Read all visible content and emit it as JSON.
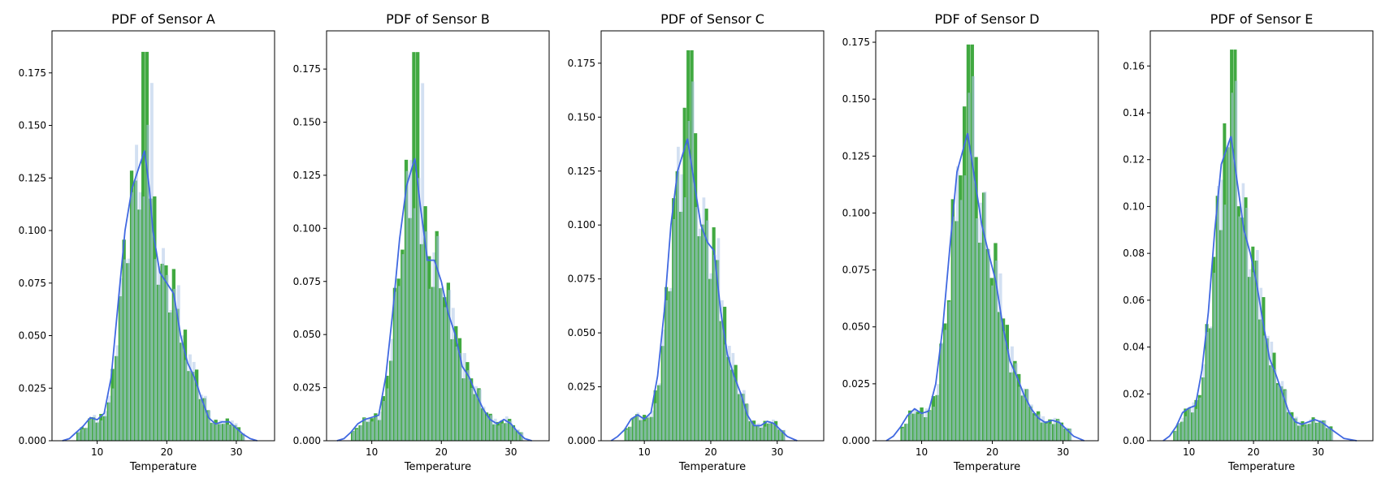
{
  "colors": {
    "hist_green": "#2ca02c",
    "hist_blue": "#aec7e8",
    "kde_line": "#4169e1",
    "axis": "#000000",
    "background": "#ffffff"
  },
  "chart_data": [
    {
      "type": "bar",
      "title": "PDF of Sensor A",
      "xlabel": "Temperature",
      "ylabel": "",
      "xlim": [
        3.5,
        35.5
      ],
      "ylim": [
        0,
        0.195
      ],
      "xticks": [
        10,
        20,
        30
      ],
      "yticks": [
        0.0,
        0.025,
        0.05,
        0.075,
        0.1,
        0.125,
        0.15,
        0.175
      ],
      "ytick_labels": [
        "0.000",
        "0.025",
        "0.050",
        "0.075",
        "0.100",
        "0.125",
        "0.150",
        "0.175"
      ],
      "grid": false,
      "peak": 0.185,
      "peak_x": 16.8,
      "kde": [
        [
          5,
          0.0
        ],
        [
          6,
          0.001
        ],
        [
          7,
          0.004
        ],
        [
          8,
          0.007
        ],
        [
          9,
          0.011
        ],
        [
          10,
          0.01
        ],
        [
          11,
          0.013
        ],
        [
          12,
          0.03
        ],
        [
          13,
          0.065
        ],
        [
          14,
          0.1
        ],
        [
          15,
          0.12
        ],
        [
          16,
          0.13
        ],
        [
          16.8,
          0.138
        ],
        [
          17.5,
          0.12
        ],
        [
          18,
          0.1
        ],
        [
          19,
          0.08
        ],
        [
          20,
          0.075
        ],
        [
          21,
          0.07
        ],
        [
          22,
          0.05
        ],
        [
          23,
          0.037
        ],
        [
          24,
          0.03
        ],
        [
          25,
          0.02
        ],
        [
          26,
          0.011
        ],
        [
          27,
          0.008
        ],
        [
          28,
          0.009
        ],
        [
          29,
          0.009
        ],
        [
          30,
          0.006
        ],
        [
          31,
          0.003
        ],
        [
          32,
          0.001
        ],
        [
          33,
          0.0
        ]
      ]
    },
    {
      "type": "bar",
      "title": "PDF of Sensor B",
      "xlabel": "Temperature",
      "ylabel": "",
      "xlim": [
        3.5,
        35.5
      ],
      "ylim": [
        0,
        0.193
      ],
      "xticks": [
        10,
        20,
        30
      ],
      "yticks": [
        0.0,
        0.025,
        0.05,
        0.075,
        0.1,
        0.125,
        0.15,
        0.175
      ],
      "ytick_labels": [
        "0.000",
        "0.025",
        "0.050",
        "0.075",
        "0.100",
        "0.125",
        "0.150",
        "0.175"
      ],
      "grid": false,
      "peak": 0.183,
      "peak_x": 16.2,
      "kde": [
        [
          5,
          0.0
        ],
        [
          6,
          0.001
        ],
        [
          7,
          0.004
        ],
        [
          8,
          0.008
        ],
        [
          9,
          0.01
        ],
        [
          10,
          0.011
        ],
        [
          11,
          0.012
        ],
        [
          12,
          0.03
        ],
        [
          13,
          0.06
        ],
        [
          14,
          0.095
        ],
        [
          15,
          0.12
        ],
        [
          16.2,
          0.133
        ],
        [
          17,
          0.11
        ],
        [
          18,
          0.085
        ],
        [
          19,
          0.085
        ],
        [
          20,
          0.075
        ],
        [
          21,
          0.06
        ],
        [
          22,
          0.05
        ],
        [
          23,
          0.035
        ],
        [
          24,
          0.03
        ],
        [
          25,
          0.022
        ],
        [
          26,
          0.015
        ],
        [
          27,
          0.01
        ],
        [
          28,
          0.008
        ],
        [
          29,
          0.01
        ],
        [
          30,
          0.008
        ],
        [
          31,
          0.004
        ],
        [
          32,
          0.001
        ],
        [
          33,
          0.0
        ]
      ]
    },
    {
      "type": "bar",
      "title": "PDF of Sensor C",
      "xlabel": "Temperature",
      "ylabel": "",
      "xlim": [
        3.5,
        37
      ],
      "ylim": [
        0,
        0.19
      ],
      "xticks": [
        10,
        20,
        30
      ],
      "yticks": [
        0.0,
        0.025,
        0.05,
        0.075,
        0.1,
        0.125,
        0.15,
        0.175
      ],
      "ytick_labels": [
        "0.000",
        "0.025",
        "0.050",
        "0.075",
        "0.100",
        "0.125",
        "0.150",
        "0.175"
      ],
      "grid": false,
      "peak": 0.181,
      "peak_x": 16.5,
      "kde": [
        [
          5,
          0.0
        ],
        [
          6,
          0.002
        ],
        [
          7,
          0.005
        ],
        [
          8,
          0.01
        ],
        [
          9,
          0.012
        ],
        [
          10,
          0.01
        ],
        [
          11,
          0.013
        ],
        [
          12,
          0.03
        ],
        [
          13,
          0.06
        ],
        [
          14,
          0.1
        ],
        [
          15,
          0.125
        ],
        [
          16.5,
          0.14
        ],
        [
          17.5,
          0.12
        ],
        [
          18.5,
          0.1
        ],
        [
          19.5,
          0.092
        ],
        [
          20.5,
          0.088
        ],
        [
          21.5,
          0.06
        ],
        [
          22.5,
          0.04
        ],
        [
          23.5,
          0.03
        ],
        [
          24.5,
          0.022
        ],
        [
          25.5,
          0.012
        ],
        [
          26.5,
          0.007
        ],
        [
          27.5,
          0.007
        ],
        [
          28.5,
          0.009
        ],
        [
          29.5,
          0.008
        ],
        [
          30.5,
          0.005
        ],
        [
          31.5,
          0.002
        ],
        [
          33,
          0.0
        ]
      ]
    },
    {
      "type": "bar",
      "title": "PDF of Sensor D",
      "xlabel": "Temperature",
      "ylabel": "",
      "xlim": [
        3.5,
        35
      ],
      "ylim": [
        0,
        0.18
      ],
      "xticks": [
        10,
        20,
        30
      ],
      "yticks": [
        0.0,
        0.025,
        0.05,
        0.075,
        0.1,
        0.125,
        0.15,
        0.175
      ],
      "ytick_labels": [
        "0.000",
        "0.025",
        "0.050",
        "0.075",
        "0.100",
        "0.125",
        "0.150",
        "0.175"
      ],
      "grid": false,
      "peak": 0.174,
      "peak_x": 16.5,
      "kde": [
        [
          5,
          0.0
        ],
        [
          6,
          0.002
        ],
        [
          7,
          0.006
        ],
        [
          8,
          0.011
        ],
        [
          9,
          0.014
        ],
        [
          10,
          0.012
        ],
        [
          11,
          0.013
        ],
        [
          12,
          0.025
        ],
        [
          13,
          0.05
        ],
        [
          14,
          0.085
        ],
        [
          15,
          0.118
        ],
        [
          16.5,
          0.135
        ],
        [
          17.5,
          0.115
        ],
        [
          18.5,
          0.095
        ],
        [
          19.5,
          0.082
        ],
        [
          20.5,
          0.07
        ],
        [
          21.5,
          0.05
        ],
        [
          22.5,
          0.035
        ],
        [
          23.5,
          0.028
        ],
        [
          24.5,
          0.02
        ],
        [
          25.5,
          0.014
        ],
        [
          26.5,
          0.01
        ],
        [
          27.5,
          0.008
        ],
        [
          28.5,
          0.009
        ],
        [
          29.5,
          0.008
        ],
        [
          30.5,
          0.005
        ],
        [
          31.5,
          0.002
        ],
        [
          33,
          0.0
        ]
      ]
    },
    {
      "type": "bar",
      "title": "PDF of Sensor E",
      "xlabel": "Temperature",
      "ylabel": "",
      "xlim": [
        4,
        38.5
      ],
      "ylim": [
        0,
        0.175
      ],
      "xticks": [
        10,
        20,
        30
      ],
      "yticks": [
        0.0,
        0.02,
        0.04,
        0.06,
        0.08,
        0.1,
        0.12,
        0.14,
        0.16
      ],
      "ytick_labels": [
        "0.00",
        "0.02",
        "0.04",
        "0.06",
        "0.08",
        "0.10",
        "0.12",
        "0.14",
        "0.16"
      ],
      "grid": false,
      "peak": 0.167,
      "peak_x": 16.5,
      "kde": [
        [
          6,
          0.0
        ],
        [
          7,
          0.002
        ],
        [
          8,
          0.006
        ],
        [
          9,
          0.012
        ],
        [
          10,
          0.014
        ],
        [
          11,
          0.015
        ],
        [
          12,
          0.03
        ],
        [
          13,
          0.055
        ],
        [
          14,
          0.09
        ],
        [
          15,
          0.118
        ],
        [
          16.5,
          0.13
        ],
        [
          17.5,
          0.11
        ],
        [
          18.5,
          0.09
        ],
        [
          19.5,
          0.08
        ],
        [
          20.5,
          0.067
        ],
        [
          21.5,
          0.05
        ],
        [
          22.5,
          0.035
        ],
        [
          23.5,
          0.028
        ],
        [
          24.5,
          0.02
        ],
        [
          25.5,
          0.012
        ],
        [
          26.5,
          0.008
        ],
        [
          27.5,
          0.007
        ],
        [
          28.5,
          0.008
        ],
        [
          29.5,
          0.009
        ],
        [
          30.5,
          0.008
        ],
        [
          31.5,
          0.006
        ],
        [
          32.5,
          0.004
        ],
        [
          34,
          0.001
        ],
        [
          36,
          0.0
        ]
      ]
    }
  ]
}
